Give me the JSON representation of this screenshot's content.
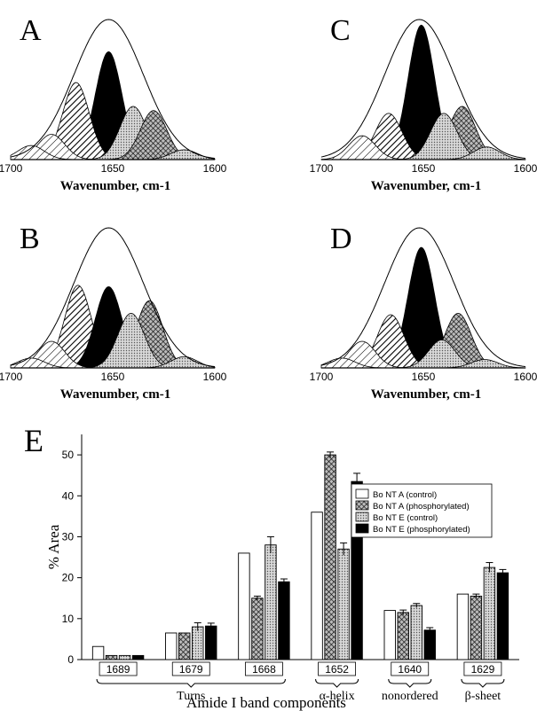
{
  "colors": {
    "black": "#000000",
    "white": "#ffffff",
    "light_gray": "#c8c8c8",
    "hatch": "#000000"
  },
  "panels_small": {
    "xlabel": "Wavenumber, cm-1",
    "x_ticks": [
      "1700",
      "1650",
      "1600"
    ],
    "items": [
      {
        "letter": "A",
        "components": [
          {
            "center": 1690,
            "height": 0.1,
            "fill": "hatch-light"
          },
          {
            "center": 1680,
            "height": 0.18,
            "fill": "hatch-light"
          },
          {
            "center": 1668,
            "height": 0.55,
            "fill": "hatch-diag"
          },
          {
            "center": 1652,
            "height": 0.77,
            "fill": "black"
          },
          {
            "center": 1640,
            "height": 0.38,
            "fill": "dots"
          },
          {
            "center": 1630,
            "height": 0.35,
            "fill": "cross"
          },
          {
            "center": 1615,
            "height": 0.07,
            "fill": "dots"
          }
        ]
      },
      {
        "letter": "C",
        "components": [
          {
            "center": 1680,
            "height": 0.17,
            "fill": "hatch-light"
          },
          {
            "center": 1667,
            "height": 0.33,
            "fill": "hatch-diag"
          },
          {
            "center": 1651,
            "height": 0.96,
            "fill": "black"
          },
          {
            "center": 1640,
            "height": 0.33,
            "fill": "dots"
          },
          {
            "center": 1631,
            "height": 0.38,
            "fill": "cross"
          },
          {
            "center": 1619,
            "height": 0.09,
            "fill": "dots"
          }
        ]
      },
      {
        "letter": "B",
        "components": [
          {
            "center": 1690,
            "height": 0.07,
            "fill": "hatch-light"
          },
          {
            "center": 1680,
            "height": 0.19,
            "fill": "hatch-light"
          },
          {
            "center": 1667,
            "height": 0.59,
            "fill": "hatch-diag"
          },
          {
            "center": 1652,
            "height": 0.58,
            "fill": "black"
          },
          {
            "center": 1641,
            "height": 0.39,
            "fill": "dots"
          },
          {
            "center": 1632,
            "height": 0.48,
            "fill": "cross"
          },
          {
            "center": 1615,
            "height": 0.08,
            "fill": "dots"
          }
        ]
      },
      {
        "letter": "D",
        "components": [
          {
            "center": 1690,
            "height": 0.07,
            "fill": "hatch-light"
          },
          {
            "center": 1680,
            "height": 0.19,
            "fill": "hatch-light"
          },
          {
            "center": 1666,
            "height": 0.38,
            "fill": "hatch-diag"
          },
          {
            "center": 1651,
            "height": 0.86,
            "fill": "black"
          },
          {
            "center": 1641,
            "height": 0.2,
            "fill": "dots"
          },
          {
            "center": 1633,
            "height": 0.39,
            "fill": "cross"
          },
          {
            "center": 1620,
            "height": 0.06,
            "fill": "dots"
          }
        ]
      }
    ]
  },
  "chart_data": {
    "type": "bar",
    "panel_letter": "E",
    "ylabel": "% Area",
    "xlabel": "Amide I band components",
    "ylim": [
      0,
      55
    ],
    "y_ticks": [
      0,
      10,
      20,
      30,
      40,
      50
    ],
    "categories": [
      "1689",
      "1679",
      "1668",
      "1652",
      "1640",
      "1629"
    ],
    "groups": [
      {
        "label": "Turns",
        "from": 0,
        "to": 2
      },
      {
        "label": "α-helix",
        "from": 3,
        "to": 3
      },
      {
        "label": "nonordered",
        "from": 4,
        "to": 4
      },
      {
        "label": "β-sheet",
        "from": 5,
        "to": 5
      }
    ],
    "series": [
      {
        "name": "Bo NT A (control)",
        "fill": "white",
        "values": [
          3.2,
          6.5,
          26,
          36,
          12,
          16
        ],
        "errors": [
          0,
          0,
          0,
          0,
          0,
          0
        ]
      },
      {
        "name": "Bo NT A (phosphorylated)",
        "fill": "cross",
        "values": [
          1.0,
          6.5,
          15,
          50,
          11.5,
          15.5
        ],
        "errors": [
          0,
          0,
          0.5,
          0.7,
          0.6,
          0.5
        ]
      },
      {
        "name": "Bo NT E (control)",
        "fill": "dots",
        "values": [
          1.0,
          8,
          28,
          27,
          13.2,
          22.5
        ],
        "errors": [
          0,
          1.0,
          2.0,
          1.5,
          0.5,
          1.2
        ]
      },
      {
        "name": "Bo NT E (phosphorylated)",
        "fill": "black",
        "values": [
          1.0,
          8.2,
          19,
          43.5,
          7.2,
          21.2
        ],
        "errors": [
          0,
          0.7,
          0.7,
          2.0,
          0.6,
          0.8
        ]
      }
    ],
    "legend_position": "top-right"
  }
}
